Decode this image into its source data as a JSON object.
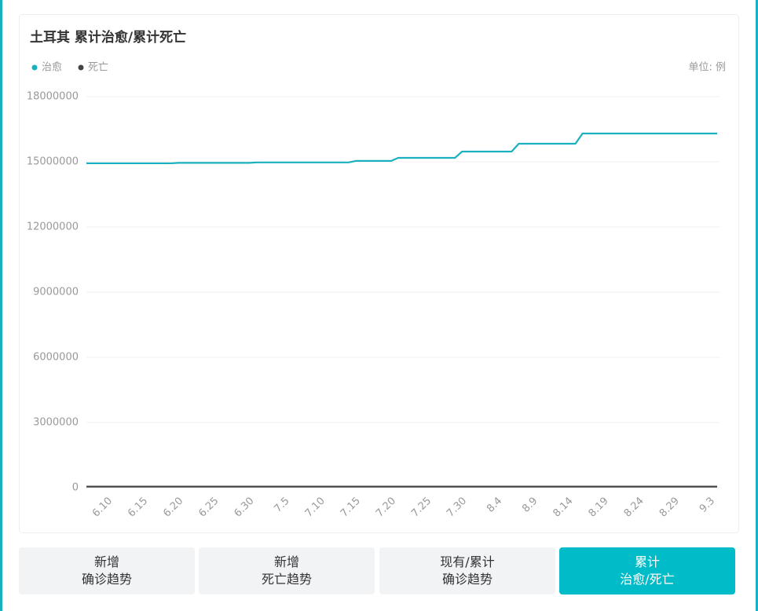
{
  "chart_data": {
    "type": "line",
    "title": "土耳其 累计治愈/累计死亡",
    "unit_label": "单位: 例",
    "legend": "top-left",
    "grid": true,
    "categories": [
      null,
      null,
      null,
      "6.10",
      null,
      null,
      null,
      null,
      "6.15",
      null,
      null,
      null,
      null,
      "6.20",
      null,
      null,
      null,
      null,
      "6.25",
      null,
      null,
      null,
      null,
      "6.30",
      null,
      null,
      null,
      null,
      "7.5",
      null,
      null,
      null,
      null,
      "7.10",
      null,
      null,
      null,
      null,
      "7.15",
      null,
      null,
      null,
      null,
      "7.20",
      null,
      null,
      null,
      null,
      "7.25",
      null,
      null,
      null,
      null,
      "7.30",
      null,
      null,
      null,
      null,
      "8.4",
      null,
      null,
      null,
      null,
      "8.9",
      null,
      null,
      null,
      null,
      "8.14",
      null,
      null,
      null,
      null,
      "8.19",
      null,
      null,
      null,
      null,
      "8.24",
      null,
      null,
      null,
      null,
      "8.29",
      null,
      null,
      null,
      null,
      "9.3",
      null
    ],
    "series": [
      {
        "name": "治愈",
        "color": "#1bb0bf",
        "values": [
          14930000,
          14930000,
          14930000,
          14930000,
          14930000,
          14930000,
          14930000,
          14930000,
          14930000,
          14930000,
          14930000,
          14930000,
          14930000,
          14950000,
          14950000,
          14950000,
          14950000,
          14950000,
          14950000,
          14950000,
          14950000,
          14950000,
          14950000,
          14950000,
          14970000,
          14970000,
          14970000,
          14970000,
          14970000,
          14970000,
          14970000,
          14970000,
          14970000,
          14970000,
          14970000,
          14970000,
          14970000,
          14970000,
          15040000,
          15040000,
          15040000,
          15040000,
          15040000,
          15040000,
          15180000,
          15180000,
          15180000,
          15180000,
          15180000,
          15180000,
          15180000,
          15180000,
          15180000,
          15470000,
          15470000,
          15470000,
          15470000,
          15470000,
          15470000,
          15470000,
          15470000,
          15830000,
          15830000,
          15830000,
          15830000,
          15830000,
          15830000,
          15830000,
          15830000,
          15830000,
          16300000,
          16300000,
          16300000,
          16300000,
          16300000,
          16300000,
          16300000,
          16300000,
          16300000,
          16300000,
          16300000,
          16300000,
          16300000,
          16300000,
          16300000,
          16300000,
          16300000,
          16300000,
          16300000,
          16300000
        ]
      },
      {
        "name": "死亡",
        "color": "#444444",
        "values": [
          49100,
          49100,
          49100,
          49100,
          49100,
          49100,
          49100,
          49100,
          49100,
          49100,
          49300,
          49300,
          49300,
          49300,
          49300,
          49300,
          49300,
          49300,
          49300,
          49300,
          49500,
          49500,
          49500,
          49500,
          49500,
          49500,
          49500,
          49500,
          49500,
          49500,
          49700,
          49700,
          49700,
          49700,
          49700,
          49700,
          49700,
          49700,
          49700,
          49700,
          49900,
          49900,
          49900,
          49900,
          49900,
          49900,
          49900,
          49900,
          49900,
          49900,
          50100,
          50100,
          50100,
          50100,
          50100,
          50100,
          50100,
          50100,
          50100,
          50100,
          50300,
          50300,
          50300,
          50300,
          50300,
          50300,
          50300,
          50300,
          50300,
          50300,
          50500,
          50500,
          50500,
          50500,
          50500,
          50500,
          50500,
          50500,
          50500,
          50500,
          50700,
          50700,
          50700,
          50700,
          50700,
          50700,
          50700,
          50700,
          50700,
          50700
        ]
      }
    ],
    "ylim": [
      0,
      18000000
    ],
    "yticks": [
      0,
      3000000,
      6000000,
      9000000,
      12000000,
      15000000,
      18000000
    ]
  },
  "tabs": [
    [
      "新增",
      "确诊趋势"
    ],
    [
      "新增",
      "死亡趋势"
    ],
    [
      "现有/累计",
      "确诊趋势"
    ],
    [
      "累计",
      "治愈/死亡"
    ]
  ],
  "active_tab": 3
}
